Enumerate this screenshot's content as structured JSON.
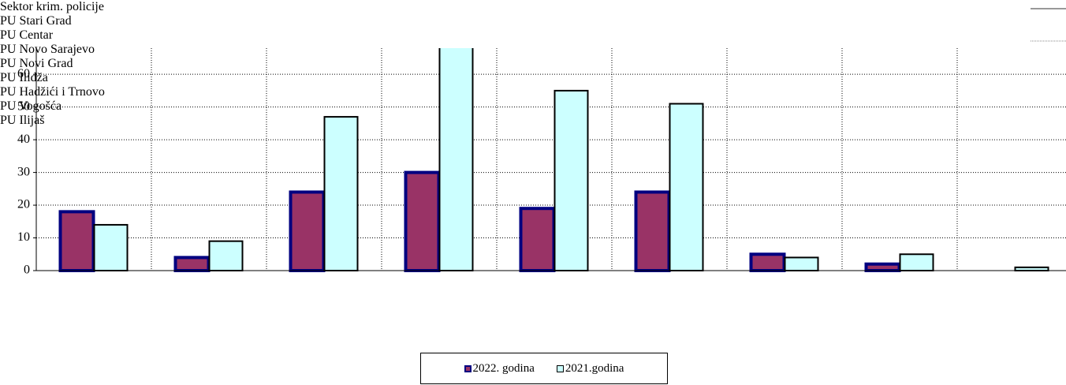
{
  "chart_data": {
    "type": "bar",
    "categories": [
      "Sektor krim. policije",
      "PU Stari Grad",
      "PU Centar",
      "PU Novo Sarajevo",
      "PU Novi Grad",
      "PU Ilidža",
      "PU Hadžići i Trnovo",
      "PU Vogošća",
      "PU Ilijaš"
    ],
    "series": [
      {
        "name": "2022. godina",
        "color": "#993366",
        "values": [
          18,
          4,
          24,
          30,
          19,
          24,
          5,
          2,
          0
        ]
      },
      {
        "name": "2021.godina",
        "color": "#ccffff",
        "values": [
          14,
          9,
          47,
          72,
          55,
          51,
          4,
          5,
          1
        ]
      }
    ],
    "ylim": [
      0,
      68
    ],
    "yticks": [
      0,
      10,
      20,
      30,
      40,
      50,
      60
    ],
    "grid": true,
    "legend": "bottom"
  }
}
